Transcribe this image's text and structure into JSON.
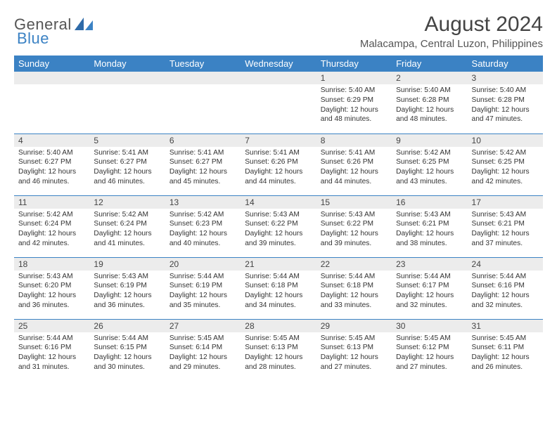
{
  "brand": {
    "part1": "General",
    "part2": "Blue"
  },
  "header": {
    "title": "August 2024",
    "location": "Malacampa, Central Luzon, Philippines"
  },
  "colors": {
    "header_bg": "#3b82c4",
    "header_fg": "#ffffff",
    "daynum_bg": "#ececec",
    "rule": "#3b82c4",
    "title_color": "#444444",
    "text_color": "#333333"
  },
  "weekdays": [
    "Sunday",
    "Monday",
    "Tuesday",
    "Wednesday",
    "Thursday",
    "Friday",
    "Saturday"
  ],
  "weeks": [
    [
      null,
      null,
      null,
      null,
      {
        "n": "1",
        "sr": "5:40 AM",
        "ss": "6:29 PM",
        "dl": "12 hours and 48 minutes."
      },
      {
        "n": "2",
        "sr": "5:40 AM",
        "ss": "6:28 PM",
        "dl": "12 hours and 48 minutes."
      },
      {
        "n": "3",
        "sr": "5:40 AM",
        "ss": "6:28 PM",
        "dl": "12 hours and 47 minutes."
      }
    ],
    [
      {
        "n": "4",
        "sr": "5:40 AM",
        "ss": "6:27 PM",
        "dl": "12 hours and 46 minutes."
      },
      {
        "n": "5",
        "sr": "5:41 AM",
        "ss": "6:27 PM",
        "dl": "12 hours and 46 minutes."
      },
      {
        "n": "6",
        "sr": "5:41 AM",
        "ss": "6:27 PM",
        "dl": "12 hours and 45 minutes."
      },
      {
        "n": "7",
        "sr": "5:41 AM",
        "ss": "6:26 PM",
        "dl": "12 hours and 44 minutes."
      },
      {
        "n": "8",
        "sr": "5:41 AM",
        "ss": "6:26 PM",
        "dl": "12 hours and 44 minutes."
      },
      {
        "n": "9",
        "sr": "5:42 AM",
        "ss": "6:25 PM",
        "dl": "12 hours and 43 minutes."
      },
      {
        "n": "10",
        "sr": "5:42 AM",
        "ss": "6:25 PM",
        "dl": "12 hours and 42 minutes."
      }
    ],
    [
      {
        "n": "11",
        "sr": "5:42 AM",
        "ss": "6:24 PM",
        "dl": "12 hours and 42 minutes."
      },
      {
        "n": "12",
        "sr": "5:42 AM",
        "ss": "6:24 PM",
        "dl": "12 hours and 41 minutes."
      },
      {
        "n": "13",
        "sr": "5:42 AM",
        "ss": "6:23 PM",
        "dl": "12 hours and 40 minutes."
      },
      {
        "n": "14",
        "sr": "5:43 AM",
        "ss": "6:22 PM",
        "dl": "12 hours and 39 minutes."
      },
      {
        "n": "15",
        "sr": "5:43 AM",
        "ss": "6:22 PM",
        "dl": "12 hours and 39 minutes."
      },
      {
        "n": "16",
        "sr": "5:43 AM",
        "ss": "6:21 PM",
        "dl": "12 hours and 38 minutes."
      },
      {
        "n": "17",
        "sr": "5:43 AM",
        "ss": "6:21 PM",
        "dl": "12 hours and 37 minutes."
      }
    ],
    [
      {
        "n": "18",
        "sr": "5:43 AM",
        "ss": "6:20 PM",
        "dl": "12 hours and 36 minutes."
      },
      {
        "n": "19",
        "sr": "5:43 AM",
        "ss": "6:19 PM",
        "dl": "12 hours and 36 minutes."
      },
      {
        "n": "20",
        "sr": "5:44 AM",
        "ss": "6:19 PM",
        "dl": "12 hours and 35 minutes."
      },
      {
        "n": "21",
        "sr": "5:44 AM",
        "ss": "6:18 PM",
        "dl": "12 hours and 34 minutes."
      },
      {
        "n": "22",
        "sr": "5:44 AM",
        "ss": "6:18 PM",
        "dl": "12 hours and 33 minutes."
      },
      {
        "n": "23",
        "sr": "5:44 AM",
        "ss": "6:17 PM",
        "dl": "12 hours and 32 minutes."
      },
      {
        "n": "24",
        "sr": "5:44 AM",
        "ss": "6:16 PM",
        "dl": "12 hours and 32 minutes."
      }
    ],
    [
      {
        "n": "25",
        "sr": "5:44 AM",
        "ss": "6:16 PM",
        "dl": "12 hours and 31 minutes."
      },
      {
        "n": "26",
        "sr": "5:44 AM",
        "ss": "6:15 PM",
        "dl": "12 hours and 30 minutes."
      },
      {
        "n": "27",
        "sr": "5:45 AM",
        "ss": "6:14 PM",
        "dl": "12 hours and 29 minutes."
      },
      {
        "n": "28",
        "sr": "5:45 AM",
        "ss": "6:13 PM",
        "dl": "12 hours and 28 minutes."
      },
      {
        "n": "29",
        "sr": "5:45 AM",
        "ss": "6:13 PM",
        "dl": "12 hours and 27 minutes."
      },
      {
        "n": "30",
        "sr": "5:45 AM",
        "ss": "6:12 PM",
        "dl": "12 hours and 27 minutes."
      },
      {
        "n": "31",
        "sr": "5:45 AM",
        "ss": "6:11 PM",
        "dl": "12 hours and 26 minutes."
      }
    ]
  ],
  "labels": {
    "sunrise": "Sunrise: ",
    "sunset": "Sunset: ",
    "daylight": "Daylight: "
  }
}
